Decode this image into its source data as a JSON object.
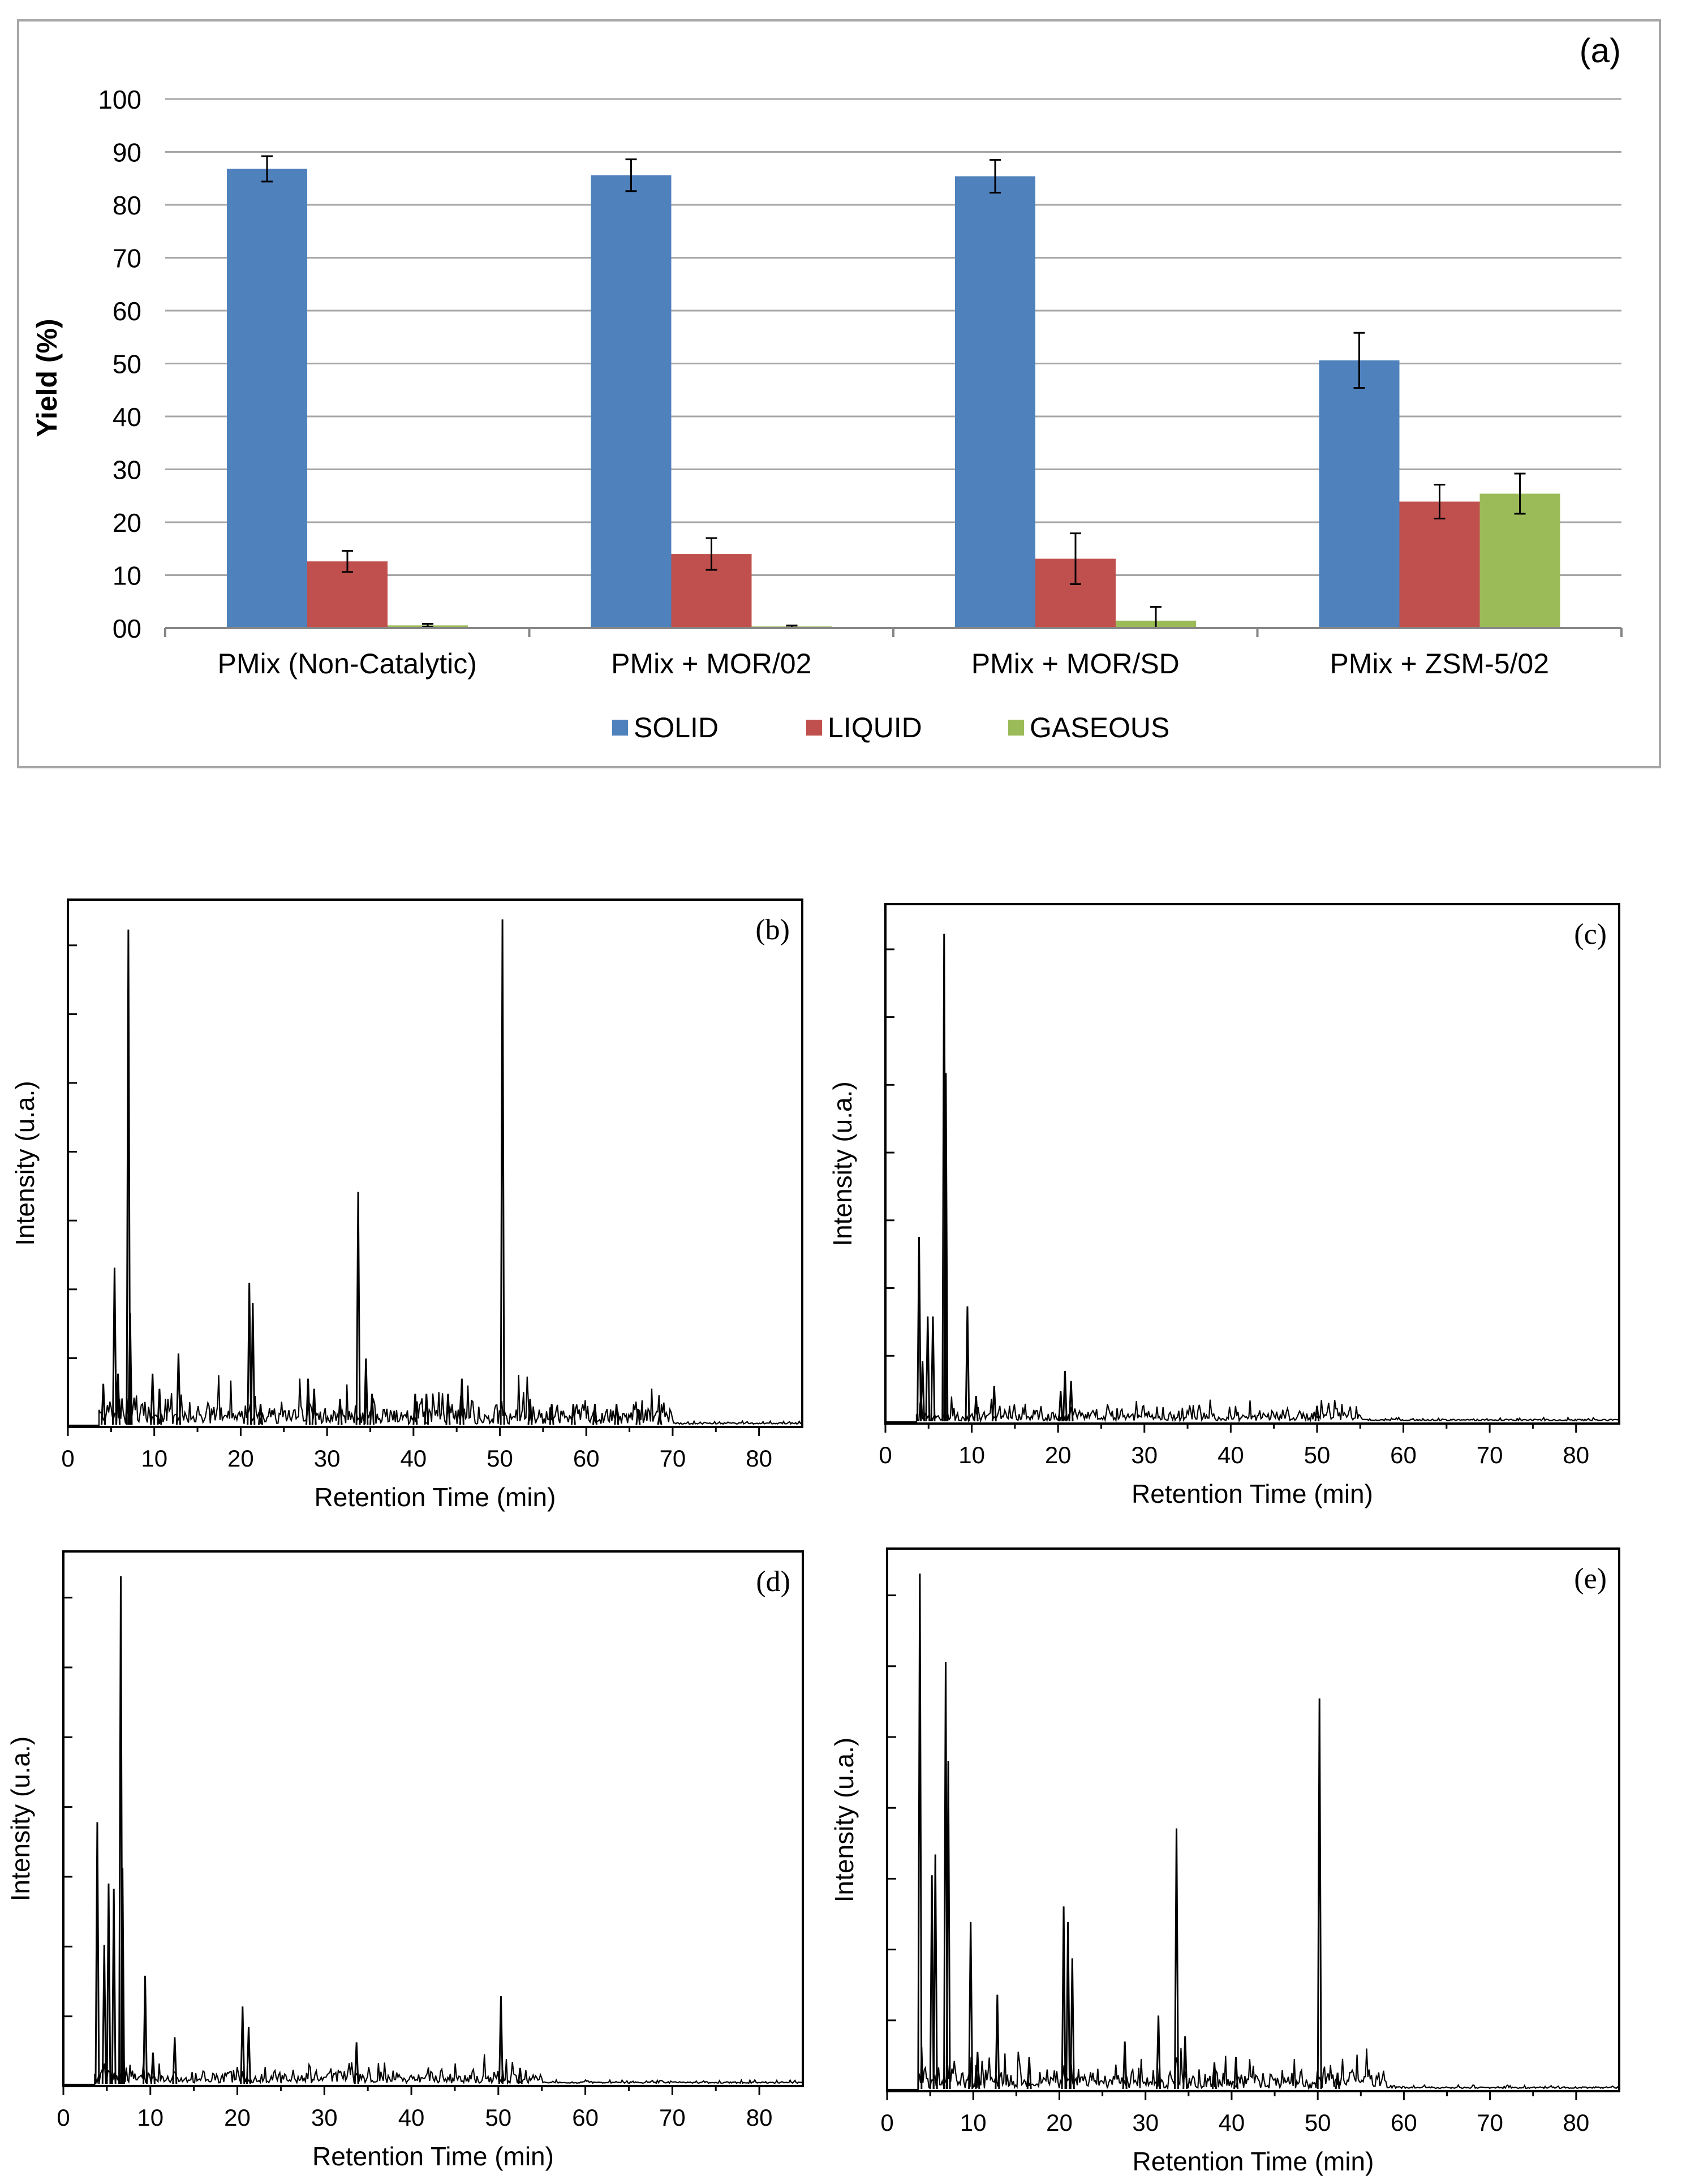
{
  "chart_data": [
    {
      "type": "bar",
      "panel_label": "(a)",
      "title": "",
      "xlabel": "",
      "ylabel": "Yield (%)",
      "ylim": [
        0,
        100
      ],
      "yticks": [
        "00",
        "10",
        "20",
        "30",
        "40",
        "50",
        "60",
        "70",
        "80",
        "90",
        "100"
      ],
      "grid": true,
      "legend_position": "bottom",
      "categories": [
        "PMix (Non-Catalytic)",
        "PMix + MOR/02",
        "PMix + MOR/SD",
        "PMix + ZSM-5/02"
      ],
      "series": [
        {
          "name": "SOLID",
          "color": "#4f81bd",
          "values": [
            86.8,
            85.6,
            85.4,
            50.6
          ],
          "errors": [
            2.4,
            3.0,
            3.1,
            5.2
          ]
        },
        {
          "name": "LIQUID",
          "color": "#c0504d",
          "values": [
            12.6,
            14.0,
            13.1,
            23.9
          ],
          "errors": [
            2.0,
            3.0,
            4.8,
            3.2
          ]
        },
        {
          "name": "GASEOUS",
          "color": "#9bbb59",
          "values": [
            0.5,
            0.3,
            1.4,
            25.4
          ],
          "errors": [
            0.3,
            0.2,
            2.6,
            3.8
          ]
        }
      ]
    },
    {
      "type": "line",
      "panel_label": "(b)",
      "xlabel": "Retention Time (min)",
      "ylabel": "Intensity (u.a.)",
      "xlim": [
        0,
        85
      ],
      "ylim": [
        0,
        1
      ],
      "xticks": [
        "0",
        "10",
        "20",
        "30",
        "40",
        "50",
        "60",
        "70",
        "80"
      ],
      "peaks": [
        [
          4.1,
          0.08
        ],
        [
          5.4,
          0.31
        ],
        [
          5.8,
          0.1
        ],
        [
          7.0,
          0.98
        ],
        [
          7.2,
          0.22
        ],
        [
          9.8,
          0.1
        ],
        [
          10.6,
          0.07
        ],
        [
          12.8,
          0.14
        ],
        [
          21.0,
          0.28
        ],
        [
          21.4,
          0.24
        ],
        [
          22.3,
          0.04
        ],
        [
          27.8,
          0.09
        ],
        [
          28.5,
          0.07
        ],
        [
          31.5,
          0.05
        ],
        [
          33.6,
          0.46
        ],
        [
          34.5,
          0.13
        ],
        [
          35.2,
          0.06
        ],
        [
          40.2,
          0.06
        ],
        [
          41.5,
          0.06
        ],
        [
          44.0,
          0.06
        ],
        [
          45.6,
          0.09
        ],
        [
          50.3,
          1.0
        ],
        [
          53.5,
          0.05
        ],
        [
          56.0,
          0.04
        ],
        [
          58.5,
          0.04
        ],
        [
          61.0,
          0.04
        ],
        [
          63.5,
          0.04
        ],
        [
          66.0,
          0.03
        ],
        [
          68.5,
          0.02
        ]
      ],
      "noise_end": 70,
      "noise_amp": 0.035
    },
    {
      "type": "line",
      "panel_label": "(c)",
      "xlabel": "Retention Time (min)",
      "ylabel": "Intensity (u.a.)",
      "xlim": [
        0,
        85
      ],
      "ylim": [
        0,
        1
      ],
      "xticks": [
        "0",
        "10",
        "20",
        "30",
        "40",
        "50",
        "60",
        "70",
        "80"
      ],
      "peaks": [
        [
          3.9,
          0.37
        ],
        [
          4.3,
          0.12
        ],
        [
          4.9,
          0.21
        ],
        [
          5.5,
          0.21
        ],
        [
          6.8,
          0.98
        ],
        [
          7.0,
          0.7
        ],
        [
          9.5,
          0.23
        ],
        [
          10.5,
          0.05
        ],
        [
          12.6,
          0.07
        ],
        [
          20.3,
          0.06
        ],
        [
          20.8,
          0.1
        ],
        [
          21.5,
          0.08
        ],
        [
          50.0,
          0.03
        ]
      ],
      "noise_end": 55,
      "noise_amp": 0.018
    },
    {
      "type": "line",
      "panel_label": "(d)",
      "xlabel": "Retention Time (min)",
      "ylabel": "Intensity (u.a.)",
      "xlim": [
        0,
        85
      ],
      "ylim": [
        0,
        1
      ],
      "xticks": [
        "0",
        "10",
        "20",
        "30",
        "40",
        "50",
        "60",
        "70",
        "80"
      ],
      "peaks": [
        [
          3.9,
          0.51
        ],
        [
          4.7,
          0.27
        ],
        [
          5.2,
          0.39
        ],
        [
          5.8,
          0.38
        ],
        [
          6.6,
          0.99
        ],
        [
          6.8,
          0.42
        ],
        [
          9.4,
          0.21
        ],
        [
          10.3,
          0.06
        ],
        [
          12.8,
          0.09
        ],
        [
          20.6,
          0.15
        ],
        [
          21.3,
          0.11
        ],
        [
          33.7,
          0.08
        ],
        [
          50.3,
          0.17
        ],
        [
          52.5,
          0.03
        ]
      ],
      "noise_end": 55,
      "noise_amp": 0.02
    },
    {
      "type": "line",
      "panel_label": "(e)",
      "xlabel": "Retention Time (min)",
      "ylabel": "Intensity (u.a.)",
      "xlim": [
        0,
        85
      ],
      "ylim": [
        0,
        1
      ],
      "xticks": [
        "0",
        "10",
        "20",
        "30",
        "40",
        "50",
        "60",
        "70",
        "80"
      ],
      "peaks": [
        [
          3.8,
          0.99
        ],
        [
          5.2,
          0.41
        ],
        [
          5.6,
          0.45
        ],
        [
          6.8,
          0.82
        ],
        [
          7.1,
          0.63
        ],
        [
          9.7,
          0.32
        ],
        [
          10.5,
          0.07
        ],
        [
          12.8,
          0.18
        ],
        [
          16.5,
          0.06
        ],
        [
          20.5,
          0.35
        ],
        [
          21.0,
          0.32
        ],
        [
          21.5,
          0.25
        ],
        [
          27.6,
          0.09
        ],
        [
          31.5,
          0.14
        ],
        [
          33.6,
          0.5
        ],
        [
          34.6,
          0.1
        ],
        [
          38.0,
          0.05
        ],
        [
          40.5,
          0.06
        ],
        [
          50.2,
          0.75
        ],
        [
          52.3,
          0.03
        ]
      ],
      "noise_end": 58,
      "noise_amp": 0.03
    }
  ]
}
